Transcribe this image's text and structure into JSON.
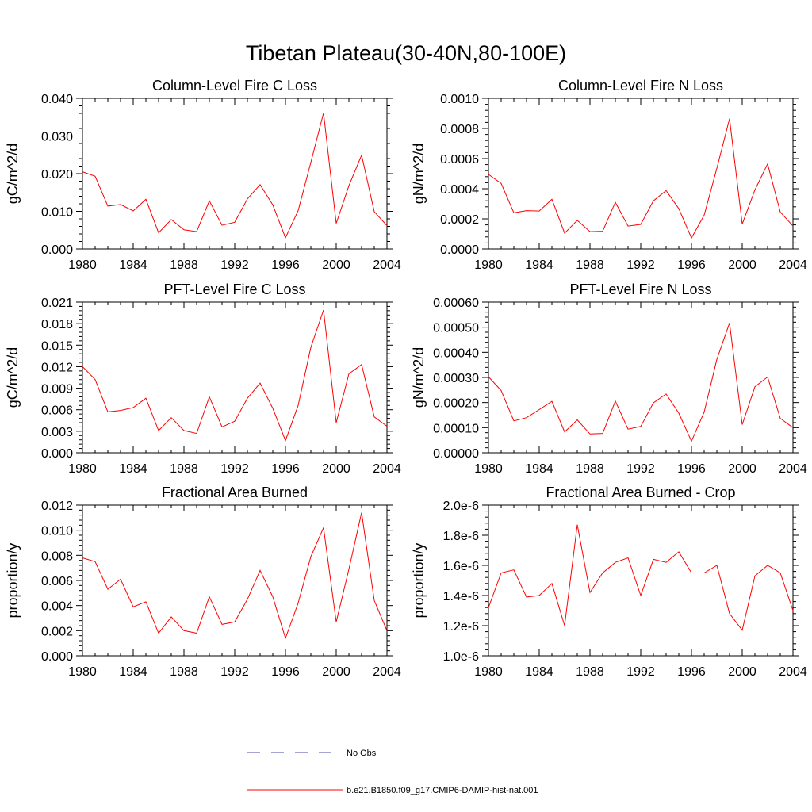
{
  "title": "Tibetan Plateau(30-40N,80-100E)",
  "colors": {
    "model": "#ff0000",
    "obs": "#4a4aaa"
  },
  "legend": {
    "obs_label": "No Obs",
    "model_label": "b.e21.B1850.f09_g17.CMIP6-DAMIP-hist-nat.001"
  },
  "chart_data": [
    {
      "type": "line",
      "title": "Column-Level Fire C Loss",
      "ylabel": "gC/m^2/d",
      "xlim": [
        1980,
        2004
      ],
      "ylim": [
        0,
        0.04
      ],
      "xticks": [
        "1980",
        "1984",
        "1988",
        "1992",
        "1996",
        "2000",
        "2004"
      ],
      "yticks": [
        "0.000",
        "0.010",
        "0.020",
        "0.030",
        "0.040"
      ],
      "series": [
        {
          "x": [
            1980,
            1981,
            1982,
            1983,
            1984,
            1985,
            1986,
            1987,
            1988,
            1989,
            1990,
            1991,
            1992,
            1993,
            1994,
            1995,
            1996,
            1997,
            1998,
            1999,
            2000,
            2001,
            2002,
            2003,
            2004
          ],
          "values": [
            0.0205,
            0.0193,
            0.0114,
            0.0118,
            0.0101,
            0.0132,
            0.0043,
            0.0078,
            0.0051,
            0.0046,
            0.0128,
            0.0063,
            0.0071,
            0.0133,
            0.0171,
            0.0117,
            0.003,
            0.0102,
            0.023,
            0.0361,
            0.0068,
            0.0168,
            0.0249,
            0.0099,
            0.0062
          ]
        }
      ]
    },
    {
      "type": "line",
      "title": "Column-Level Fire N Loss",
      "ylabel": "gN/m^2/d",
      "xlim": [
        1980,
        2004
      ],
      "ylim": [
        0,
        0.001
      ],
      "xticks": [
        "1980",
        "1984",
        "1988",
        "1992",
        "1996",
        "2000",
        "2004"
      ],
      "yticks": [
        "0.0000",
        "0.0002",
        "0.0004",
        "0.0006",
        "0.0008",
        "0.0010"
      ],
      "series": [
        {
          "x": [
            1980,
            1981,
            1982,
            1983,
            1984,
            1985,
            1986,
            1987,
            1988,
            1989,
            1990,
            1991,
            1992,
            1993,
            1994,
            1995,
            1996,
            1997,
            1998,
            1999,
            2000,
            2001,
            2002,
            2003,
            2004
          ],
          "values": [
            0.000495,
            0.000435,
            0.00024,
            0.000255,
            0.000252,
            0.00033,
            0.000105,
            0.00019,
            0.000115,
            0.000118,
            0.00031,
            0.000152,
            0.000163,
            0.00032,
            0.000388,
            0.000268,
            7.3e-05,
            0.000225,
            0.000535,
            0.000865,
            0.000165,
            0.000392,
            0.000565,
            0.000245,
            0.000152
          ]
        }
      ]
    },
    {
      "type": "line",
      "title": "PFT-Level Fire C Loss",
      "ylabel": "gC/m^2/d",
      "xlim": [
        1980,
        2004
      ],
      "ylim": [
        0,
        0.021
      ],
      "xticks": [
        "1980",
        "1984",
        "1988",
        "1992",
        "1996",
        "2000",
        "2004"
      ],
      "yticks": [
        "0.000",
        "0.003",
        "0.006",
        "0.009",
        "0.012",
        "0.015",
        "0.018",
        "0.021"
      ],
      "series": [
        {
          "x": [
            1980,
            1981,
            1982,
            1983,
            1984,
            1985,
            1986,
            1987,
            1988,
            1989,
            1990,
            1991,
            1992,
            1993,
            1994,
            1995,
            1996,
            1997,
            1998,
            1999,
            2000,
            2001,
            2002,
            2003,
            2004
          ],
          "values": [
            0.012,
            0.0102,
            0.0057,
            0.0059,
            0.0063,
            0.0076,
            0.0031,
            0.0049,
            0.0031,
            0.0027,
            0.0078,
            0.0036,
            0.0044,
            0.0076,
            0.0097,
            0.0062,
            0.0017,
            0.0066,
            0.0147,
            0.0199,
            0.0042,
            0.011,
            0.0123,
            0.005,
            0.0037
          ]
        }
      ]
    },
    {
      "type": "line",
      "title": "PFT-Level Fire N Loss",
      "ylabel": "gN/m^2/d",
      "xlim": [
        1980,
        2004
      ],
      "ylim": [
        0,
        0.0006
      ],
      "xticks": [
        "1980",
        "1984",
        "1988",
        "1992",
        "1996",
        "2000",
        "2004"
      ],
      "yticks": [
        "0.00000",
        "0.00010",
        "0.00020",
        "0.00030",
        "0.00040",
        "0.00050",
        "0.00060"
      ],
      "series": [
        {
          "x": [
            1980,
            1981,
            1982,
            1983,
            1984,
            1985,
            1986,
            1987,
            1988,
            1989,
            1990,
            1991,
            1992,
            1993,
            1994,
            1995,
            1996,
            1997,
            1998,
            1999,
            2000,
            2001,
            2002,
            2003,
            2004
          ],
          "values": [
            0.000303,
            0.000248,
            0.000127,
            0.00014,
            0.000172,
            0.000205,
            8.3e-05,
            0.000131,
            7.5e-05,
            7.7e-05,
            0.000206,
            9.4e-05,
            0.000105,
            0.000199,
            0.000234,
            0.000158,
            4.6e-05,
            0.000162,
            0.000372,
            0.000517,
            0.000112,
            0.000263,
            0.000302,
            0.000137,
            0.0001
          ]
        }
      ]
    },
    {
      "type": "line",
      "title": "Fractional Area Burned",
      "ylabel": "proportion/y",
      "xlim": [
        1980,
        2004
      ],
      "ylim": [
        0,
        0.012
      ],
      "xticks": [
        "1980",
        "1984",
        "1988",
        "1992",
        "1996",
        "2000",
        "2004"
      ],
      "yticks": [
        "0.000",
        "0.002",
        "0.004",
        "0.006",
        "0.008",
        "0.010",
        "0.012"
      ],
      "series": [
        {
          "x": [
            1980,
            1981,
            1982,
            1983,
            1984,
            1985,
            1986,
            1987,
            1988,
            1989,
            1990,
            1991,
            1992,
            1993,
            1994,
            1995,
            1996,
            1997,
            1998,
            1999,
            2000,
            2001,
            2002,
            2003,
            2004
          ],
          "values": [
            0.0078,
            0.0075,
            0.0053,
            0.0061,
            0.0039,
            0.0043,
            0.0018,
            0.0031,
            0.002,
            0.0018,
            0.0047,
            0.0025,
            0.0027,
            0.0045,
            0.0068,
            0.0047,
            0.0014,
            0.0042,
            0.0079,
            0.0102,
            0.0027,
            0.0069,
            0.0114,
            0.0044,
            0.002
          ]
        }
      ]
    },
    {
      "type": "line",
      "title": "Fractional Area Burned - Crop",
      "ylabel": "proportion/y",
      "xlim": [
        1980,
        2004
      ],
      "ylim": [
        1e-06,
        2e-06
      ],
      "xticks": [
        "1980",
        "1984",
        "1988",
        "1992",
        "1996",
        "2000",
        "2004"
      ],
      "yticks": [
        "1.0e-6",
        "1.2e-6",
        "1.4e-6",
        "1.6e-6",
        "1.8e-6",
        "2.0e-6"
      ],
      "series": [
        {
          "x": [
            1980,
            1981,
            1982,
            1983,
            1984,
            1985,
            1986,
            1987,
            1988,
            1989,
            1990,
            1991,
            1992,
            1993,
            1994,
            1995,
            1996,
            1997,
            1998,
            1999,
            2000,
            2001,
            2002,
            2003,
            2004
          ],
          "values": [
            1.32e-06,
            1.55e-06,
            1.57e-06,
            1.39e-06,
            1.4e-06,
            1.48e-06,
            1.2e-06,
            1.87e-06,
            1.42e-06,
            1.55e-06,
            1.62e-06,
            1.65e-06,
            1.4e-06,
            1.64e-06,
            1.62e-06,
            1.69e-06,
            1.55e-06,
            1.55e-06,
            1.6e-06,
            1.28e-06,
            1.17e-06,
            1.53e-06,
            1.6e-06,
            1.55e-06,
            1.3e-06
          ]
        }
      ]
    }
  ]
}
